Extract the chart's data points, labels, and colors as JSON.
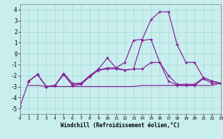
{
  "xlabel": "Windchill (Refroidissement éolien,°C)",
  "xlim": [
    0,
    23
  ],
  "ylim": [
    -5.5,
    4.5
  ],
  "yticks": [
    -5,
    -4,
    -3,
    -2,
    -1,
    0,
    1,
    2,
    3,
    4
  ],
  "xticks": [
    0,
    1,
    2,
    3,
    4,
    5,
    6,
    7,
    8,
    9,
    10,
    11,
    12,
    13,
    14,
    15,
    16,
    17,
    18,
    19,
    20,
    21,
    22,
    23
  ],
  "background_color": "#c8eeee",
  "grid_color": "#a8d8d8",
  "line_color": "#882299",
  "line1_x": [
    0,
    1,
    2,
    3,
    4,
    5,
    6,
    7,
    8,
    9,
    10,
    11,
    12,
    13,
    14,
    15,
    16,
    17,
    18,
    19,
    20,
    21,
    22,
    23
  ],
  "line1_y": [
    -4.8,
    -2.5,
    -1.9,
    -3.0,
    -2.9,
    -1.8,
    -2.7,
    -2.7,
    -2.0,
    -1.4,
    -0.4,
    -1.3,
    -0.8,
    1.2,
    1.3,
    3.1,
    3.8,
    3.8,
    0.8,
    -0.8,
    -0.8,
    -2.2,
    -2.5,
    -2.7
  ],
  "line2_x": [
    1,
    2,
    3,
    4,
    5,
    6,
    7,
    8,
    9,
    10,
    11,
    12,
    13,
    14,
    15,
    16,
    17,
    18,
    19,
    20,
    21,
    22,
    23
  ],
  "line2_y": [
    -2.5,
    -1.9,
    -3.0,
    -2.9,
    -1.9,
    -2.9,
    -2.8,
    -2.1,
    -1.5,
    -1.4,
    -1.4,
    -1.5,
    -1.4,
    -1.4,
    -0.8,
    -0.8,
    -2.5,
    -2.9,
    -2.9,
    -2.9,
    -2.3,
    -2.7,
    -2.7
  ],
  "line3_x": [
    1,
    2,
    3,
    4,
    5,
    6,
    7,
    8,
    9,
    10,
    11,
    12,
    13,
    14,
    15,
    16,
    17,
    18,
    19,
    20,
    21,
    22,
    23
  ],
  "line3_y": [
    -2.5,
    -1.9,
    -3.0,
    -2.9,
    -1.9,
    -2.9,
    -2.7,
    -2.0,
    -1.5,
    -1.3,
    -1.3,
    -1.5,
    -1.4,
    1.2,
    1.3,
    -0.8,
    -2.0,
    -2.8,
    -2.8,
    -2.8,
    -2.2,
    -2.5,
    -2.7
  ],
  "line4_x": [
    1,
    2,
    3,
    4,
    5,
    6,
    7,
    8,
    9,
    10,
    11,
    12,
    13,
    14,
    15,
    16,
    17,
    18,
    19,
    20,
    21,
    22,
    23
  ],
  "line4_y": [
    -2.9,
    -2.9,
    -3.0,
    -3.0,
    -3.0,
    -3.0,
    -3.0,
    -3.0,
    -3.0,
    -3.0,
    -3.0,
    -3.0,
    -3.0,
    -2.9,
    -2.9,
    -2.9,
    -2.9,
    -2.9,
    -2.9,
    -2.9,
    -2.9,
    -2.9,
    -2.7
  ]
}
